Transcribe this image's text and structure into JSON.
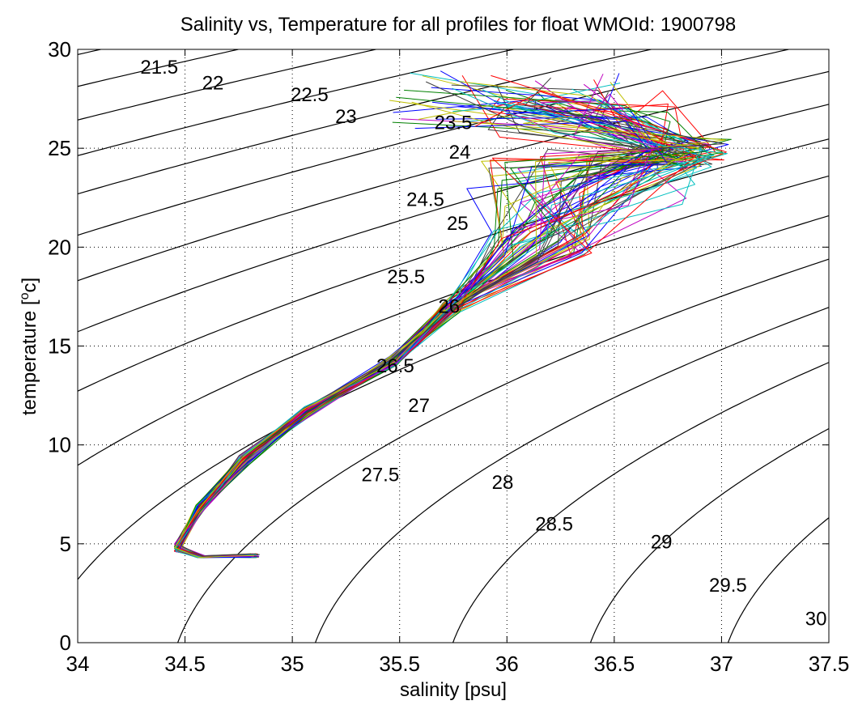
{
  "chart_data": {
    "type": "line",
    "title": "Salinity vs, Temperature for all profiles for float WMOId: 1900798",
    "xlabel": "salinity [psu]",
    "ylabel_main": "temperature [",
    "ylabel_sup": "o",
    "ylabel_end": "c]",
    "xlim": [
      34,
      37.5
    ],
    "ylim": [
      0,
      30
    ],
    "xticks": [
      34,
      34.5,
      35,
      35.5,
      36,
      36.5,
      37,
      37.5
    ],
    "xtick_labels": [
      "34",
      "34.5",
      "35",
      "35.5",
      "36",
      "36.5",
      "37",
      "37.5"
    ],
    "yticks": [
      0,
      5,
      10,
      15,
      20,
      25,
      30
    ],
    "ytick_labels": [
      "0",
      "5",
      "10",
      "15",
      "20",
      "25",
      "30"
    ],
    "grid": true,
    "density_contours": {
      "levels": [
        21.5,
        22,
        22.5,
        23,
        23.5,
        24,
        24.5,
        25,
        25.5,
        26,
        26.5,
        27,
        27.5,
        28,
        28.5,
        29,
        29.5,
        30
      ],
      "labels": [
        {
          "text": "21.5",
          "s": 34.38,
          "t": 29.1
        },
        {
          "text": "22",
          "s": 34.63,
          "t": 28.3
        },
        {
          "text": "22.5",
          "s": 35.08,
          "t": 27.7
        },
        {
          "text": "23",
          "s": 35.25,
          "t": 26.6
        },
        {
          "text": "23.5",
          "s": 35.75,
          "t": 26.3
        },
        {
          "text": "24",
          "s": 35.78,
          "t": 24.8
        },
        {
          "text": "24.5",
          "s": 35.62,
          "t": 22.4
        },
        {
          "text": "25",
          "s": 35.77,
          "t": 21.2
        },
        {
          "text": "25.5",
          "s": 35.53,
          "t": 18.5
        },
        {
          "text": "26",
          "s": 35.73,
          "t": 17.0
        },
        {
          "text": "26.5",
          "s": 35.48,
          "t": 14.0
        },
        {
          "text": "27",
          "s": 35.59,
          "t": 12.0
        },
        {
          "text": "27.5",
          "s": 35.41,
          "t": 8.5
        },
        {
          "text": "28",
          "s": 35.98,
          "t": 8.1
        },
        {
          "text": "28.5",
          "s": 36.22,
          "t": 6.0
        },
        {
          "text": "29",
          "s": 36.72,
          "t": 5.1
        },
        {
          "text": "29.5",
          "s": 37.03,
          "t": 2.9
        },
        {
          "text": "30",
          "s": 37.44,
          "t": 1.2
        }
      ]
    },
    "profile_series": {
      "description_colors": [
        "#0000ff",
        "#008000",
        "#ff0000",
        "#00bfbf",
        "#bf00bf",
        "#bfbf00",
        "#404040"
      ],
      "count": 70,
      "deep_point": {
        "s": 34.85,
        "t": 4.4
      },
      "min_salinity_point": {
        "s": 34.45,
        "t": 4.8
      },
      "knee_point": {
        "s": 35.7,
        "t": 16.5
      },
      "surface_range": {
        "s_min": 35.45,
        "s_max": 37.1,
        "t_min": 22.0,
        "t_max": 29.4
      }
    }
  }
}
